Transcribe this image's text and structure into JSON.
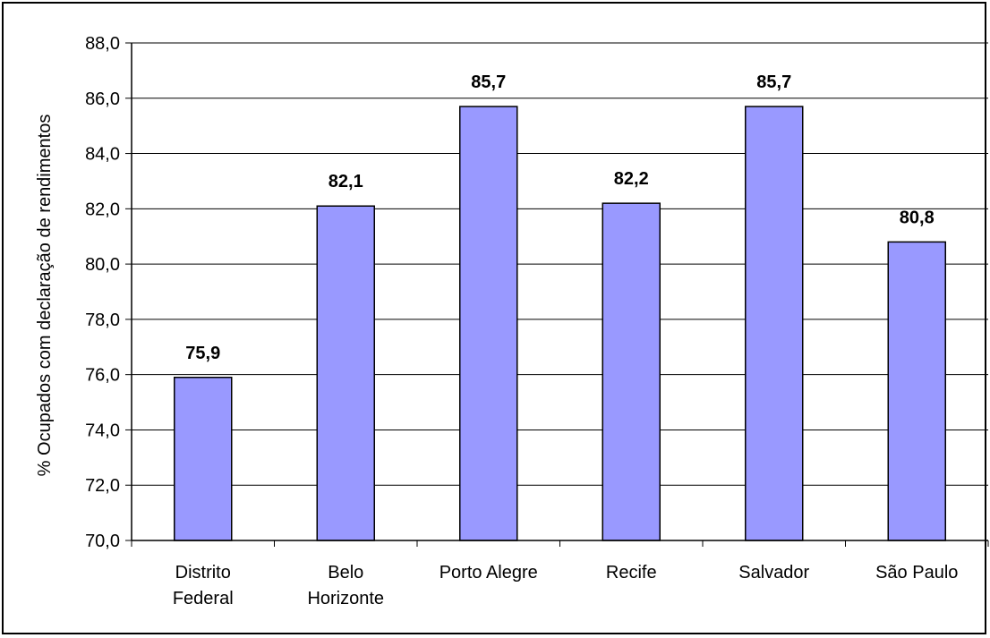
{
  "chart_data": {
    "type": "bar",
    "categories": [
      [
        "Distrito",
        "Federal"
      ],
      [
        "Belo",
        "Horizonte"
      ],
      [
        "Porto Alegre"
      ],
      [
        "Recife"
      ],
      [
        "Salvador"
      ],
      [
        "São Paulo"
      ]
    ],
    "values": [
      75.9,
      82.1,
      85.7,
      82.2,
      85.7,
      80.8
    ],
    "data_labels": [
      "75,9",
      "82,1",
      "85,7",
      "82,2",
      "85,7",
      "80,8"
    ],
    "ylabel": "% Ocupados com declaração de rendimentos",
    "xlabel": "",
    "ylim": [
      70.0,
      88.0
    ],
    "ytick_values": [
      70,
      72,
      74,
      76,
      78,
      80,
      82,
      84,
      86,
      88
    ],
    "ytick_labels": [
      "70,0",
      "72,0",
      "74,0",
      "76,0",
      "78,0",
      "80,0",
      "82,0",
      "84,0",
      "86,0",
      "88,0"
    ],
    "grid": true,
    "legend": "none",
    "colors": {
      "bar_fill": "#9999ff",
      "bar_stroke": "#000000",
      "grid": "#000000"
    }
  }
}
